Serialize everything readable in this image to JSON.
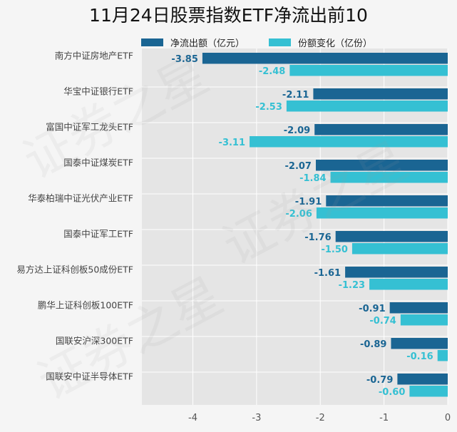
{
  "chart_data": {
    "type": "bar",
    "orientation": "horizontal",
    "title": "11月24日股票指数ETF净流出前10",
    "categories": [
      "南方中证房地产ETF",
      "华宝中证银行ETF",
      "富国中证军工龙头ETF",
      "国泰中证煤炭ETF",
      "华泰柏瑞中证光伏产业ETF",
      "国泰中证军工ETF",
      "易方达上证科创板50成份ETF",
      "鹏华上证科创板100ETF",
      "国联安沪深300ETF",
      "国联安中证半导体ETF"
    ],
    "series": [
      {
        "name": "净流出额（亿元）",
        "color": "#1a6593",
        "values": [
          -3.85,
          -2.11,
          -2.09,
          -2.07,
          -1.91,
          -1.76,
          -1.61,
          -0.91,
          -0.89,
          -0.79
        ],
        "labels": [
          "-3.85",
          "-2.11",
          "-2.09",
          "-2.07",
          "-1.91",
          "-1.76",
          "-1.61",
          "-0.91",
          "-0.89",
          "-0.79"
        ]
      },
      {
        "name": "份额变化（亿份）",
        "color": "#35c0d3",
        "values": [
          -2.48,
          -2.53,
          -3.11,
          -1.84,
          -2.06,
          -1.5,
          -1.23,
          -0.74,
          -0.16,
          -0.6
        ],
        "labels": [
          "-2.48",
          "-2.53",
          "-3.11",
          "-1.84",
          "-2.06",
          "-1.50",
          "-1.23",
          "-0.74",
          "-0.16",
          "-0.60"
        ]
      }
    ],
    "xlim": [
      -4.8,
      0
    ],
    "xticks": [
      "-4",
      "-3",
      "-2",
      "-1",
      "0"
    ],
    "xtick_values": [
      -4,
      -3,
      -2,
      -1,
      0
    ],
    "grid": true,
    "legend_position": "top"
  },
  "watermark": "证券之星"
}
